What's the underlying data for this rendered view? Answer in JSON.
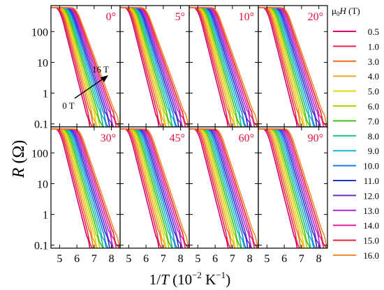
{
  "figure": {
    "y_axis_label_main": "R",
    "y_axis_label_unit": " (Ω)",
    "x_axis_label_main": "1/",
    "x_axis_label_italic": "T",
    "x_axis_label_unit_open": " (10",
    "x_axis_label_exp": "−2",
    "x_axis_label_unit_mid": " K",
    "x_axis_label_exp2": "−1",
    "x_axis_label_unit_close": ")",
    "inset_arrow_start_label": "0 T",
    "inset_arrow_end_label": "16 T",
    "legend_title_prefix": "μ",
    "legend_title_sub": "0",
    "legend_title_italic": "H",
    "legend_title_suffix": " (T)"
  },
  "chart_data": {
    "type": "line",
    "layout": "2x4 small multiples sharing axes",
    "x_scale": "linear",
    "y_scale": "log",
    "xlim": [
      4.5,
      8.5
    ],
    "ylim": [
      0.08,
      700
    ],
    "x_ticks": [
      5,
      6,
      7,
      8
    ],
    "y_ticks": [
      0.1,
      1,
      10,
      100
    ],
    "y_tick_labels": [
      "0.1",
      "1",
      "10",
      "100"
    ],
    "plateau_resistance": 600,
    "panels": [
      {
        "angle_label": "0°",
        "onset_x_at_0T": 5.0,
        "onset_x_at_16T": 5.95,
        "x_at_0p1_0T": 6.7,
        "x_at_0p1_16T": 8.45
      },
      {
        "angle_label": "5°",
        "onset_x_at_0T": 5.0,
        "onset_x_at_16T": 6.0,
        "x_at_0p1_0T": 6.7,
        "x_at_0p1_16T": 8.45
      },
      {
        "angle_label": "10°",
        "onset_x_at_0T": 5.0,
        "onset_x_at_16T": 6.05,
        "x_at_0p1_0T": 6.7,
        "x_at_0p1_16T": 8.45
      },
      {
        "angle_label": "20°",
        "onset_x_at_0T": 5.0,
        "onset_x_at_16T": 6.1,
        "x_at_0p1_0T": 6.7,
        "x_at_0p1_16T": 8.45
      },
      {
        "angle_label": "30°",
        "onset_x_at_0T": 5.0,
        "onset_x_at_16T": 6.15,
        "x_at_0p1_0T": 6.7,
        "x_at_0p1_16T": 8.45
      },
      {
        "angle_label": "45°",
        "onset_x_at_0T": 5.0,
        "onset_x_at_16T": 6.2,
        "x_at_0p1_0T": 6.7,
        "x_at_0p1_16T": 8.45
      },
      {
        "angle_label": "60°",
        "onset_x_at_0T": 5.0,
        "onset_x_at_16T": 6.25,
        "x_at_0p1_0T": 6.7,
        "x_at_0p1_16T": 8.45
      },
      {
        "angle_label": "90°",
        "onset_x_at_0T": 5.0,
        "onset_x_at_16T": 6.3,
        "x_at_0p1_0T": 6.7,
        "x_at_0p1_16T": 8.45
      }
    ],
    "series": [
      {
        "name": "0.5",
        "color": "#d4006e"
      },
      {
        "name": "1.0",
        "color": "#e8244a"
      },
      {
        "name": "3.0",
        "color": "#f26a1b"
      },
      {
        "name": "4.0",
        "color": "#f5a623"
      },
      {
        "name": "5.0",
        "color": "#e8d400"
      },
      {
        "name": "6.0",
        "color": "#a6d400"
      },
      {
        "name": "7.0",
        "color": "#3cc21b"
      },
      {
        "name": "8.0",
        "color": "#1bbf8a"
      },
      {
        "name": "9.0",
        "color": "#19b6d2"
      },
      {
        "name": "10.0",
        "color": "#1e7be0"
      },
      {
        "name": "11.0",
        "color": "#2433c8"
      },
      {
        "name": "12.0",
        "color": "#6a2ad4"
      },
      {
        "name": "13.0",
        "color": "#b02ad4"
      },
      {
        "name": "14.0",
        "color": "#e0209e"
      },
      {
        "name": "15.0",
        "color": "#e8243c"
      },
      {
        "name": "16.0",
        "color": "#f08a2a"
      }
    ]
  }
}
